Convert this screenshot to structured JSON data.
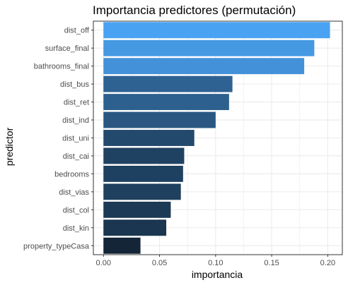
{
  "chart_data": {
    "type": "bar",
    "orientation": "horizontal",
    "title": "Importancia predictores (permutación)",
    "xlabel": "importancia",
    "ylabel": "predictor",
    "xlim": [
      -0.009,
      0.213
    ],
    "xticks": [
      "0.00",
      "0.05",
      "0.10",
      "0.15",
      "0.20"
    ],
    "xtick_values": [
      0,
      0.05,
      0.1,
      0.15,
      0.2
    ],
    "grid": true,
    "categories": [
      "dist_off",
      "surface_final",
      "bathrooms_final",
      "dist_bus",
      "dist_ret",
      "dist_ind",
      "dist_uni",
      "dist_cai",
      "bedrooms",
      "dist_vias",
      "dist_col",
      "dist_kin",
      "property_typeCasa"
    ],
    "values": [
      0.202,
      0.188,
      0.179,
      0.115,
      0.112,
      0.1,
      0.081,
      0.072,
      0.071,
      0.069,
      0.06,
      0.056,
      0.033
    ],
    "colors": {
      "bar_high": "#4aa3f2",
      "bar_low": "#132537",
      "grid": "#ebebeb",
      "panel_border": "#333333"
    }
  }
}
